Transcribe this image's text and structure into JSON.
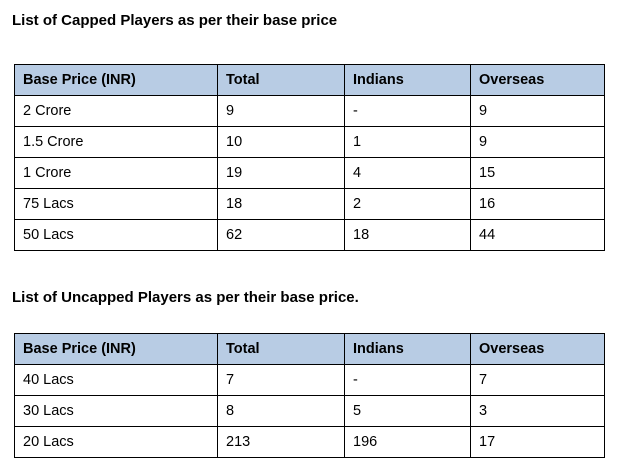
{
  "colors": {
    "header_background": "#b8cce4",
    "border": "#000000"
  },
  "capped": {
    "title": "List of Capped Players as per their base price",
    "headers": [
      "Base Price (INR)",
      "Total",
      "Indians",
      "Overseas"
    ],
    "rows": [
      [
        "2 Crore",
        "9",
        "-",
        "9"
      ],
      [
        "1.5 Crore",
        "10",
        "1",
        "9"
      ],
      [
        "1 Crore",
        "19",
        "4",
        "15"
      ],
      [
        "75 Lacs",
        "18",
        "2",
        "16"
      ],
      [
        "50 Lacs",
        "62",
        "18",
        "44"
      ]
    ]
  },
  "uncapped": {
    "title": "List of Uncapped Players as per their base price.",
    "headers": [
      "Base Price (INR)",
      "Total",
      "Indians",
      "Overseas"
    ],
    "rows": [
      [
        "40 Lacs",
        "7",
        "-",
        "7"
      ],
      [
        "30 Lacs",
        "8",
        "5",
        "3"
      ],
      [
        "20 Lacs",
        "213",
        "196",
        "17"
      ]
    ]
  }
}
